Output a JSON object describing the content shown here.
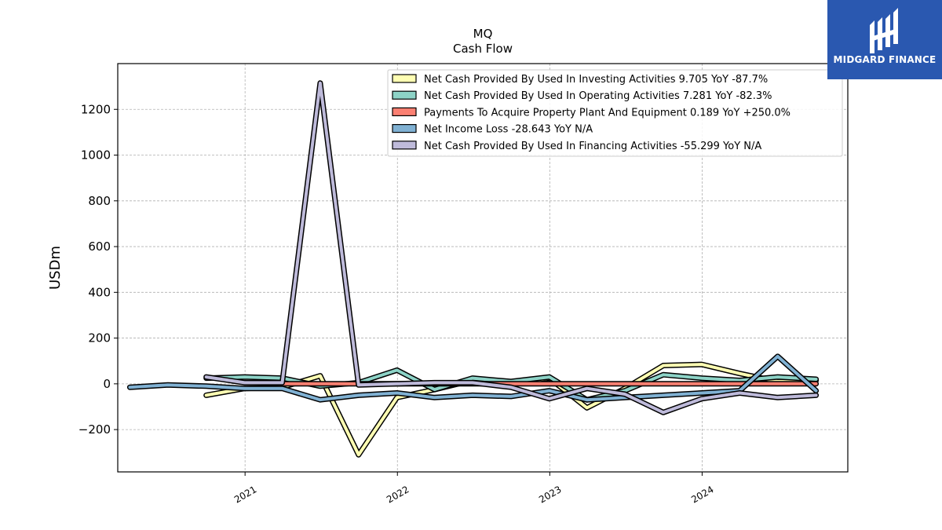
{
  "brand": {
    "name": "MIDGARD FINANCE",
    "icon": "midgard-logo-icon",
    "color": "#2a58b0"
  },
  "chart_data": {
    "type": "line",
    "title": "MQ",
    "subtitle": "Cash Flow",
    "ylabel": "USDm",
    "xlabel": "",
    "ylim": [
      -385,
      1400
    ],
    "xlim": [
      "2020-03-02",
      "2024-12-15"
    ],
    "yticks": [
      -200,
      0,
      200,
      400,
      600,
      800,
      1000,
      1200
    ],
    "ytick_labels": [
      "−200",
      "0",
      "200",
      "400",
      "600",
      "800",
      "1000",
      "1200"
    ],
    "xticks": [
      "2021-01-01",
      "2022-01-01",
      "2023-01-01",
      "2024-01-01"
    ],
    "xtick_labels": [
      "2021",
      "2022",
      "2023",
      "2024"
    ],
    "grid": true,
    "legend_position": "top-right",
    "x": [
      "2020-03-31",
      "2020-06-30",
      "2020-09-30",
      "2020-12-31",
      "2021-03-31",
      "2021-06-30",
      "2021-09-30",
      "2021-12-31",
      "2022-03-31",
      "2022-06-30",
      "2022-09-30",
      "2022-12-31",
      "2023-03-31",
      "2023-06-30",
      "2023-09-30",
      "2023-12-31",
      "2024-03-31",
      "2024-06-30",
      "2024-09-30"
    ],
    "series": [
      {
        "name": "Net Cash Provided By Used In Investing Activities",
        "legend_label": "Net Cash Provided By Used In Investing Activities  9.705 YoY -87.7%",
        "color": "#ffffb3",
        "values": [
          null,
          null,
          -50,
          -20,
          -15,
          35,
          -310,
          -60,
          -25,
          15,
          0,
          25,
          -105,
          -20,
          80,
          85,
          45,
          10,
          15
        ]
      },
      {
        "name": "Net Cash Provided By Used In Operating Activities",
        "legend_label": "Net Cash Provided By Used In Operating Activities  7.281 YoY -82.3%",
        "color": "#8dd3c7",
        "values": [
          null,
          null,
          25,
          30,
          25,
          -10,
          5,
          60,
          -25,
          25,
          10,
          30,
          -70,
          -30,
          40,
          25,
          15,
          30,
          20
        ]
      },
      {
        "name": "Payments To Acquire Property Plant And Equipment",
        "legend_label": "Payments To Acquire Property Plant And Equipment  0.189 YoY +250.0%",
        "color": "#fb8072",
        "values": [
          null,
          null,
          null,
          null,
          0,
          0,
          0,
          0,
          0,
          0,
          0,
          0,
          0,
          0,
          0,
          0,
          0,
          0,
          0
        ]
      },
      {
        "name": "Net Income Loss",
        "legend_label": "Net Income Loss  -28.643 YoY N/A",
        "color": "#80b1d3",
        "values": [
          -15,
          -5,
          -10,
          -20,
          -20,
          -70,
          -50,
          -40,
          -60,
          -50,
          -55,
          -30,
          -70,
          -60,
          -50,
          -40,
          -30,
          120,
          -30
        ]
      },
      {
        "name": "Net Cash Provided By Used In Financing Activities",
        "legend_label": "Net Cash Provided By Used In Financing Activities  -55.299 YoY N/A",
        "color": "#bebada",
        "values": [
          null,
          null,
          30,
          5,
          5,
          1315,
          -5,
          0,
          5,
          5,
          -15,
          -65,
          -20,
          -45,
          -125,
          -65,
          -40,
          -60,
          -50
        ]
      }
    ]
  }
}
